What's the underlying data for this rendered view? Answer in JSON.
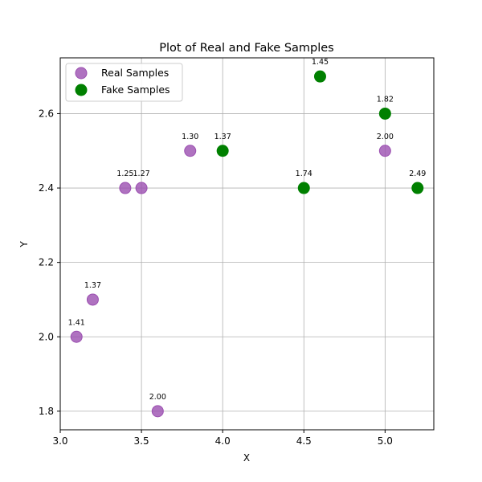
{
  "chart_data": {
    "type": "scatter",
    "title": "Plot of Real and Fake Samples",
    "xlabel": "X",
    "ylabel": "Y",
    "xlim": [
      3.0,
      5.3
    ],
    "ylim": [
      1.75,
      2.75
    ],
    "xticks": [
      3.0,
      3.5,
      4.0,
      4.5,
      5.0
    ],
    "xtick_labels": [
      "3.0",
      "3.5",
      "4.0",
      "4.5",
      "5.0"
    ],
    "yticks": [
      1.8,
      2.0,
      2.2,
      2.4,
      2.6
    ],
    "ytick_labels": [
      "1.8",
      "2.0",
      "2.2",
      "2.4",
      "2.6"
    ],
    "grid": true,
    "legend_position": "top-left",
    "series": [
      {
        "name": "Real Samples",
        "color": "#9b4fb0",
        "points": [
          {
            "x": 3.1,
            "y": 2.0,
            "label": "1.41"
          },
          {
            "x": 3.2,
            "y": 2.1,
            "label": "1.37"
          },
          {
            "x": 3.4,
            "y": 2.4,
            "label": "1.25"
          },
          {
            "x": 3.5,
            "y": 2.4,
            "label": "1.27"
          },
          {
            "x": 3.6,
            "y": 1.8,
            "label": "2.00"
          },
          {
            "x": 3.8,
            "y": 2.5,
            "label": "1.30"
          },
          {
            "x": 5.0,
            "y": 2.5,
            "label": "2.00"
          }
        ]
      },
      {
        "name": "Fake Samples",
        "color": "#008000",
        "points": [
          {
            "x": 4.0,
            "y": 2.5,
            "label": "1.37"
          },
          {
            "x": 4.5,
            "y": 2.4,
            "label": "1.74"
          },
          {
            "x": 4.6,
            "y": 2.7,
            "label": "1.45"
          },
          {
            "x": 5.0,
            "y": 2.6,
            "label": "1.82"
          },
          {
            "x": 5.2,
            "y": 2.4,
            "label": "2.49"
          }
        ]
      }
    ]
  }
}
